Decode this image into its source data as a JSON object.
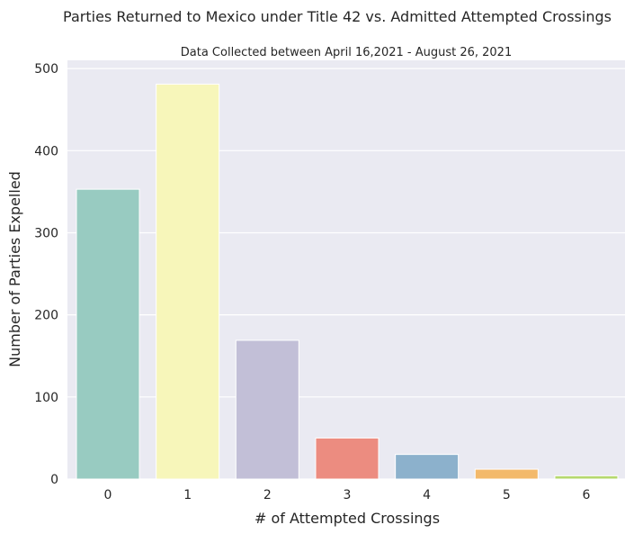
{
  "chart_data": {
    "type": "bar",
    "title": "Parties Returned to Mexico under Title 42 vs. Admitted Attempted Crossings",
    "subtitle": "Data Collected between April 16,2021 - August 26, 2021",
    "xlabel": "# of Attempted Crossings",
    "ylabel": "Number of Parties Expelled",
    "categories": [
      "0",
      "1",
      "2",
      "3",
      "4",
      "5",
      "6"
    ],
    "values": [
      353,
      481,
      169,
      50,
      30,
      12,
      4
    ],
    "ylim": [
      0,
      510
    ],
    "yticks": [
      "0",
      "100",
      "200",
      "300",
      "400",
      "500"
    ],
    "grid": true,
    "legend": "none",
    "colors": [
      "#98cbc1",
      "#f7f6ba",
      "#c2bfd7",
      "#ec8c80",
      "#8cb1cc",
      "#f3b96b",
      "#b5d86e"
    ],
    "background": "#eaeaf2"
  }
}
